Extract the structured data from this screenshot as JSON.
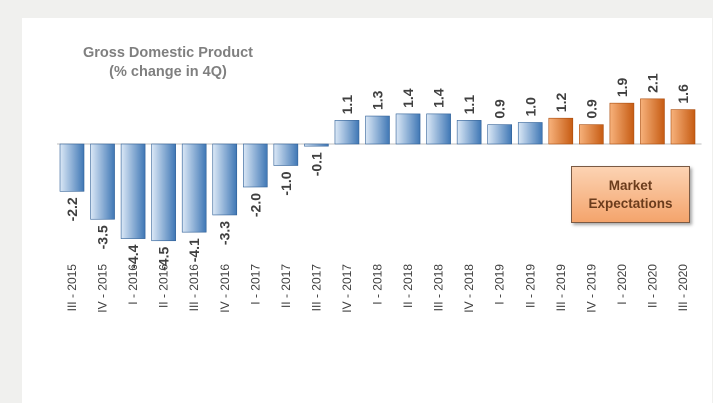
{
  "chart_data": {
    "type": "bar",
    "title": [
      "Gross Domestic Product",
      "(% change in 4Q)"
    ],
    "categories": [
      "III - 2015",
      "IV - 2015",
      "I - 2016",
      "II - 2016",
      "III - 2016",
      "IV - 2016",
      "I - 2017",
      "II - 2017",
      "III - 2017",
      "IV - 2017",
      "I - 2018",
      "II - 2018",
      "III - 2018",
      "IV - 2018",
      "I - 2019",
      "II - 2019",
      "III - 2019",
      "IV - 2019",
      "I - 2020",
      "II - 2020",
      "III - 2020"
    ],
    "values": [
      -2.2,
      -3.5,
      -4.4,
      -4.5,
      -4.1,
      -3.3,
      -2.0,
      -1.0,
      -0.1,
      1.1,
      1.3,
      1.4,
      1.4,
      1.1,
      0.9,
      1.0,
      1.2,
      0.9,
      1.9,
      2.1,
      1.6
    ],
    "value_labels": [
      "-2.2",
      "-3.5",
      "-4.4",
      "-4.5",
      "-4.1",
      "-3.3",
      "-2.0",
      "-1.0",
      "-0.1",
      "1.1",
      "1.3",
      "1.4",
      "1.4",
      "1.1",
      "0.9",
      "1.0",
      "1.2",
      "0.9",
      "1.9",
      "2.1",
      "1.6"
    ],
    "series_types": [
      "actual",
      "actual",
      "actual",
      "actual",
      "actual",
      "actual",
      "actual",
      "actual",
      "actual",
      "actual",
      "actual",
      "actual",
      "actual",
      "actual",
      "actual",
      "actual",
      "expectation",
      "expectation",
      "expectation",
      "expectation",
      "expectation"
    ],
    "legend": [
      "Market",
      "Expectations"
    ],
    "legend_position": "right",
    "grid": false,
    "colors": {
      "actual_light": "#dbe8f6",
      "actual_dark": "#3f77b5",
      "expectation_light": "#f7b27c",
      "expectation_dark": "#c65b12",
      "label": "#404040",
      "category": "#404040",
      "axis": "#bfbfbf"
    }
  }
}
